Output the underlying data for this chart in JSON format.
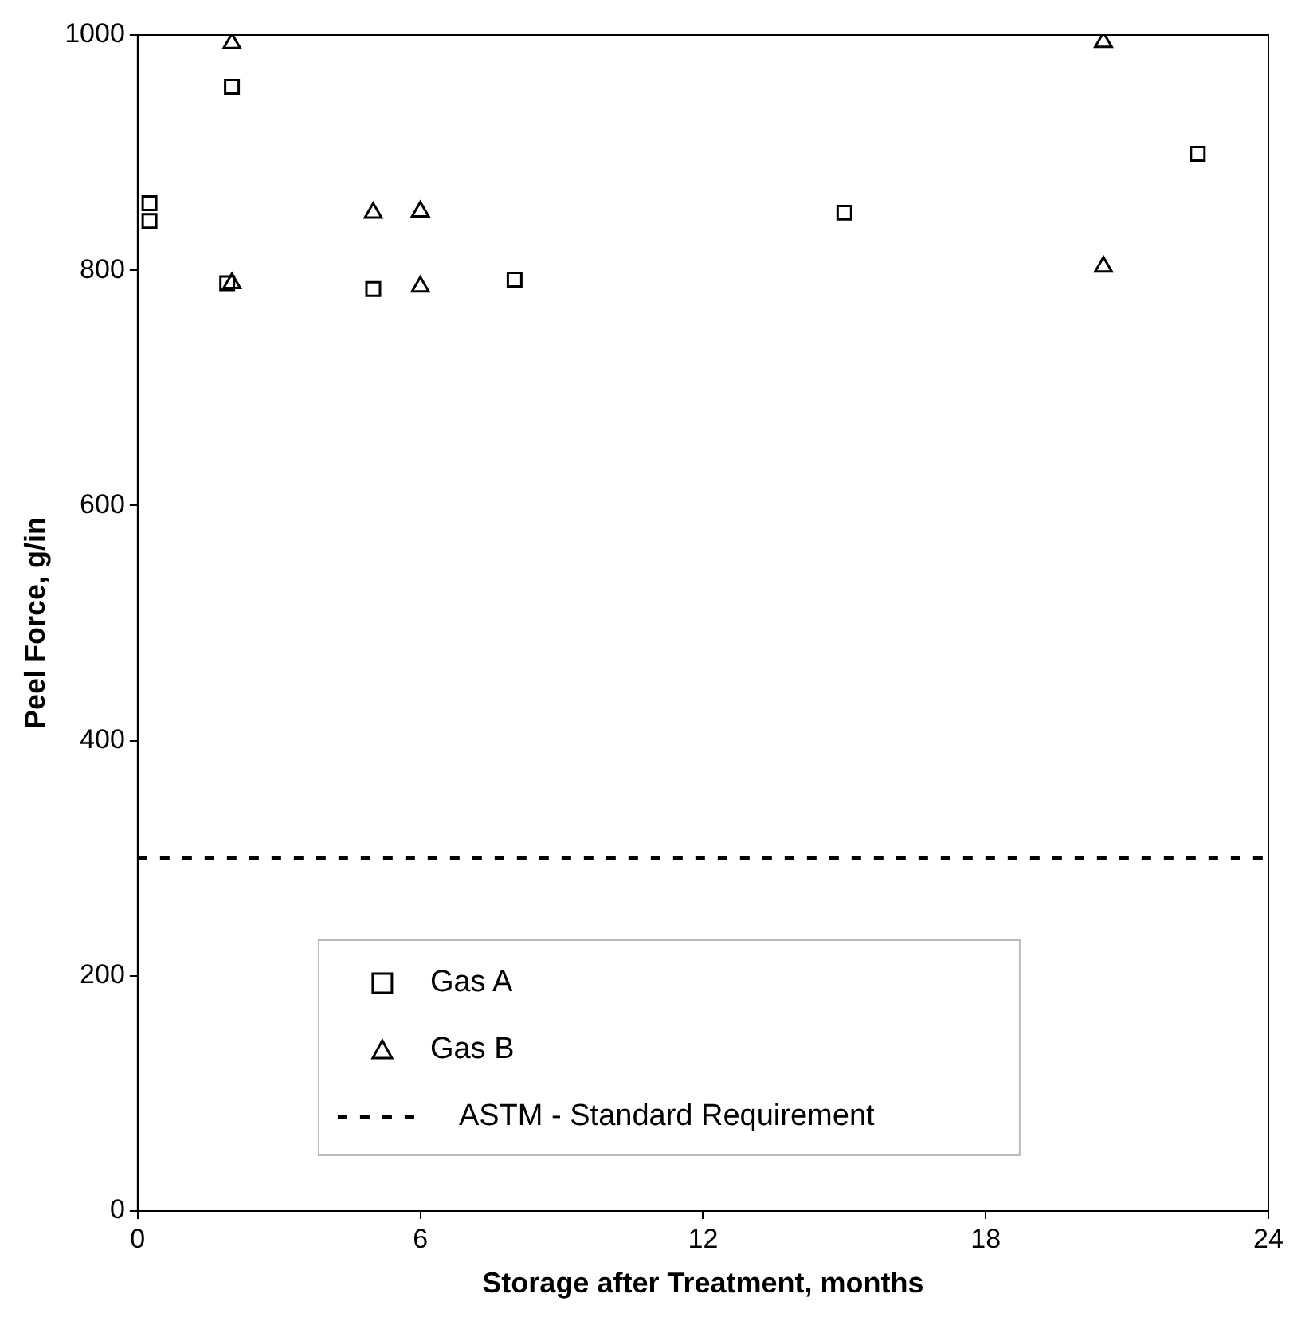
{
  "chart_data": {
    "type": "scatter",
    "xlabel": "Storage after Treatment, months",
    "ylabel": "Peel Force, g/in",
    "xlim": [
      0,
      24
    ],
    "xticks": [
      0,
      6,
      12,
      18,
      24
    ],
    "ylim": [
      0,
      1000
    ],
    "yticks": [
      0,
      200,
      400,
      600,
      800,
      1000
    ],
    "grid": false,
    "legend": "bottom",
    "series": [
      {
        "name": "Gas A",
        "color": "#000000",
        "marker": "square",
        "x": [
          0.25,
          0.25,
          2,
          1.9,
          5,
          8,
          15,
          22.5
        ],
        "values": [
          857,
          842,
          956,
          789,
          784,
          792,
          849,
          899
        ]
      },
      {
        "name": "Gas B",
        "color": "#000000",
        "marker": "triangle",
        "x": [
          2,
          2,
          5,
          6,
          6,
          20.5,
          20.5
        ],
        "values": [
          993,
          789,
          849,
          850,
          786,
          994,
          803
        ]
      }
    ],
    "ref_lines": [
      {
        "axis": "y",
        "value": 300,
        "label": "ASTM - Standard Requirement",
        "color": "#000000",
        "line_style": "dashed"
      }
    ]
  }
}
